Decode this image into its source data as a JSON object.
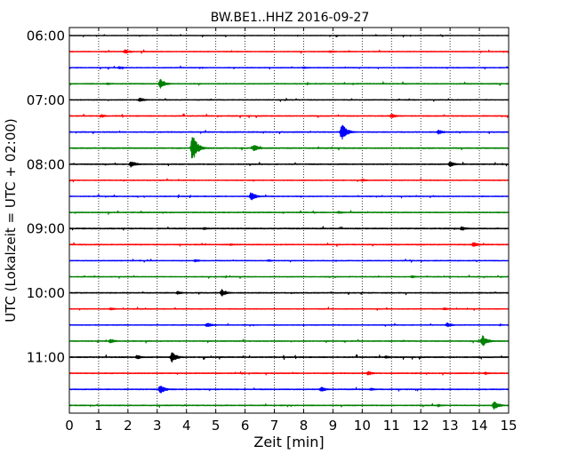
{
  "chart_data": {
    "type": "line",
    "title": "BW.BE1..HHZ 2016-09-27",
    "xlabel": "Zeit  [min]",
    "ylabel": "UTC (Lokalzeit = UTC + 02:00)",
    "xlim": [
      0,
      15
    ],
    "x_ticks": [
      0,
      1,
      2,
      3,
      4,
      5,
      6,
      7,
      8,
      9,
      10,
      11,
      12,
      13,
      14,
      15
    ],
    "x_tick_labels": [
      "0",
      "1",
      "2",
      "3",
      "4",
      "5",
      "6",
      "7",
      "8",
      "9",
      "10",
      "11",
      "12",
      "13",
      "14",
      "15"
    ],
    "y_ticks": [
      "06:00",
      "07:00",
      "08:00",
      "09:00",
      "10:00",
      "11:00"
    ],
    "grid": "vertical dotted",
    "trace_interval_minutes": 15,
    "trace_colors": [
      "#000000",
      "#ff0000",
      "#0000ff",
      "#008000"
    ],
    "traces": [
      {
        "start": "06:00",
        "color": "#000000",
        "amplitude": 0.25,
        "events": []
      },
      {
        "start": "06:15",
        "color": "#ff0000",
        "amplitude": 0.3,
        "events": [
          {
            "t": 1.9,
            "amp": 2.5
          },
          {
            "t": 8.9,
            "amp": 1.5
          }
        ]
      },
      {
        "start": "06:30",
        "color": "#0000ff",
        "amplitude": 0.3,
        "events": [
          {
            "t": 1.7,
            "amp": 1.5
          },
          {
            "t": 8.0,
            "amp": 1.2
          }
        ]
      },
      {
        "start": "06:45",
        "color": "#008000",
        "amplitude": 0.35,
        "events": [
          {
            "t": 3.1,
            "amp": 6.0
          },
          {
            "t": 1.3,
            "amp": 1.2
          }
        ]
      },
      {
        "start": "07:00",
        "color": "#000000",
        "amplitude": 0.3,
        "events": [
          {
            "t": 2.4,
            "amp": 2.5
          }
        ]
      },
      {
        "start": "07:15",
        "color": "#ff0000",
        "amplitude": 0.35,
        "events": [
          {
            "t": 1.1,
            "amp": 1.5
          },
          {
            "t": 11.0,
            "amp": 2.5
          }
        ]
      },
      {
        "start": "07:30",
        "color": "#0000ff",
        "amplitude": 0.35,
        "events": [
          {
            "t": 9.3,
            "amp": 10.0
          },
          {
            "t": 12.6,
            "amp": 2.5
          }
        ]
      },
      {
        "start": "07:45",
        "color": "#008000",
        "amplitude": 0.4,
        "events": [
          {
            "t": 4.2,
            "amp": 16.0
          },
          {
            "t": 6.3,
            "amp": 4.5
          }
        ]
      },
      {
        "start": "08:00",
        "color": "#000000",
        "amplitude": 0.35,
        "events": [
          {
            "t": 2.1,
            "amp": 4.0
          },
          {
            "t": 13.0,
            "amp": 3.0
          }
        ]
      },
      {
        "start": "08:15",
        "color": "#ff0000",
        "amplitude": 0.3,
        "events": [
          {
            "t": 10.0,
            "amp": 1.5
          }
        ]
      },
      {
        "start": "08:30",
        "color": "#0000ff",
        "amplitude": 0.3,
        "events": [
          {
            "t": 6.2,
            "amp": 5.0
          }
        ]
      },
      {
        "start": "08:45",
        "color": "#008000",
        "amplitude": 0.35,
        "events": [
          {
            "t": 9.2,
            "amp": 1.5
          }
        ]
      },
      {
        "start": "09:00",
        "color": "#000000",
        "amplitude": 0.4,
        "events": [
          {
            "t": 13.4,
            "amp": 2.5
          },
          {
            "t": 4.6,
            "amp": 1.5
          }
        ]
      },
      {
        "start": "09:15",
        "color": "#ff0000",
        "amplitude": 0.35,
        "events": [
          {
            "t": 13.8,
            "amp": 3.0
          },
          {
            "t": 5.5,
            "amp": 1.2
          }
        ]
      },
      {
        "start": "09:30",
        "color": "#0000ff",
        "amplitude": 0.3,
        "events": [
          {
            "t": 4.3,
            "amp": 1.5
          },
          {
            "t": 6.8,
            "amp": 1.2
          }
        ]
      },
      {
        "start": "09:45",
        "color": "#008000",
        "amplitude": 0.3,
        "events": [
          {
            "t": 11.7,
            "amp": 1.5
          }
        ]
      },
      {
        "start": "10:00",
        "color": "#000000",
        "amplitude": 0.35,
        "events": [
          {
            "t": 5.2,
            "amp": 4.0
          },
          {
            "t": 3.7,
            "amp": 2.0
          }
        ]
      },
      {
        "start": "10:15",
        "color": "#ff0000",
        "amplitude": 0.3,
        "events": [
          {
            "t": 1.4,
            "amp": 1.5
          },
          {
            "t": 12.8,
            "amp": 1.5
          }
        ]
      },
      {
        "start": "10:30",
        "color": "#0000ff",
        "amplitude": 0.3,
        "events": [
          {
            "t": 4.7,
            "amp": 3.0
          },
          {
            "t": 12.9,
            "amp": 2.5
          }
        ]
      },
      {
        "start": "10:45",
        "color": "#008000",
        "amplitude": 0.35,
        "events": [
          {
            "t": 14.1,
            "amp": 7.0
          },
          {
            "t": 1.4,
            "amp": 2.5
          }
        ]
      },
      {
        "start": "11:00",
        "color": "#000000",
        "amplitude": 0.4,
        "events": [
          {
            "t": 3.5,
            "amp": 6.0
          },
          {
            "t": 2.3,
            "amp": 2.5
          },
          {
            "t": 10.8,
            "amp": 1.8
          }
        ]
      },
      {
        "start": "11:15",
        "color": "#ff0000",
        "amplitude": 0.35,
        "events": [
          {
            "t": 10.2,
            "amp": 2.5
          },
          {
            "t": 14.2,
            "amp": 1.5
          }
        ]
      },
      {
        "start": "11:30",
        "color": "#0000ff",
        "amplitude": 0.35,
        "events": [
          {
            "t": 3.1,
            "amp": 5.0
          },
          {
            "t": 8.6,
            "amp": 3.0
          },
          {
            "t": 10.3,
            "amp": 1.5
          }
        ]
      },
      {
        "start": "11:45",
        "color": "#008000",
        "amplitude": 0.35,
        "events": [
          {
            "t": 14.5,
            "amp": 5.0
          },
          {
            "t": 12.6,
            "amp": 1.5
          }
        ]
      }
    ]
  }
}
